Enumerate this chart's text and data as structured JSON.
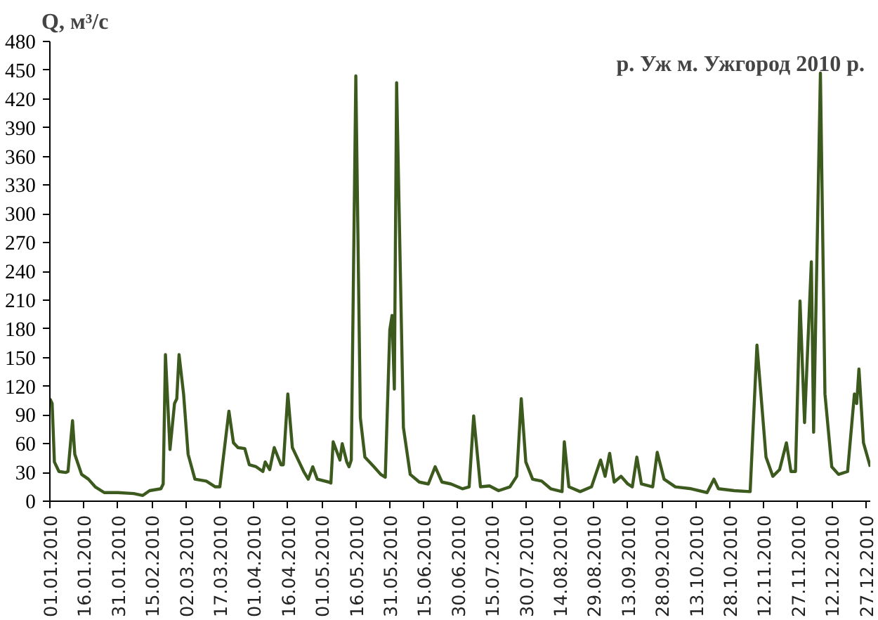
{
  "chart_data": {
    "type": "line",
    "title": "р. Уж м. Ужгород 2010 р.",
    "ylabel": "Q, м³/с",
    "x": [
      "2010-01-01",
      "2010-01-02",
      "2010-01-03",
      "2010-01-05",
      "2010-01-08",
      "2010-01-09",
      "2010-01-11",
      "2010-01-12",
      "2010-01-15",
      "2010-01-18",
      "2010-01-21",
      "2010-01-25",
      "2010-01-31",
      "2010-02-07",
      "2010-02-11",
      "2010-02-14",
      "2010-02-19",
      "2010-02-20",
      "2010-02-21",
      "2010-02-23",
      "2010-02-25",
      "2010-02-26",
      "2010-02-27",
      "2010-03-01",
      "2010-03-03",
      "2010-03-06",
      "2010-03-11",
      "2010-03-15",
      "2010-03-17",
      "2010-03-21",
      "2010-03-23",
      "2010-03-25",
      "2010-03-28",
      "2010-03-30",
      "2010-04-02",
      "2010-04-05",
      "2010-04-06",
      "2010-04-08",
      "2010-04-10",
      "2010-04-13",
      "2010-04-14",
      "2010-04-16",
      "2010-04-18",
      "2010-04-20",
      "2010-04-23",
      "2010-04-25",
      "2010-04-27",
      "2010-04-29",
      "2010-05-04",
      "2010-05-05",
      "2010-05-06",
      "2010-05-09",
      "2010-05-10",
      "2010-05-12",
      "2010-05-13",
      "2010-05-14",
      "2010-05-16",
      "2010-05-18",
      "2010-05-20",
      "2010-05-24",
      "2010-05-27",
      "2010-05-29",
      "2010-05-31",
      "2010-06-01",
      "2010-06-02",
      "2010-06-03",
      "2010-06-06",
      "2010-06-09",
      "2010-06-13",
      "2010-06-17",
      "2010-06-20",
      "2010-06-23",
      "2010-06-27",
      "2010-07-02",
      "2010-07-05",
      "2010-07-07",
      "2010-07-10",
      "2010-07-14",
      "2010-07-18",
      "2010-07-23",
      "2010-07-26",
      "2010-07-28",
      "2010-07-30",
      "2010-08-02",
      "2010-08-06",
      "2010-08-10",
      "2010-08-15",
      "2010-08-16",
      "2010-08-18",
      "2010-08-23",
      "2010-08-28",
      "2010-09-01",
      "2010-09-03",
      "2010-09-05",
      "2010-09-07",
      "2010-09-10",
      "2010-09-13",
      "2010-09-15",
      "2010-09-17",
      "2010-09-19",
      "2010-09-24",
      "2010-09-26",
      "2010-09-29",
      "2010-10-04",
      "2010-10-11",
      "2010-10-18",
      "2010-10-21",
      "2010-10-23",
      "2010-10-30",
      "2010-11-06",
      "2010-11-09",
      "2010-11-13",
      "2010-11-16",
      "2010-11-19",
      "2010-11-22",
      "2010-11-24",
      "2010-11-26",
      "2010-11-28",
      "2010-11-30",
      "2010-12-03",
      "2010-12-04",
      "2010-12-07",
      "2010-12-09",
      "2010-12-12",
      "2010-12-15",
      "2010-12-19",
      "2010-12-22",
      "2010-12-23",
      "2010-12-24",
      "2010-12-26",
      "2010-12-29"
    ],
    "series": [
      {
        "color": "#3d5a1e",
        "values": [
          107,
          102,
          41,
          31,
          30,
          31,
          84,
          49,
          28,
          23,
          15,
          9,
          9,
          8,
          6,
          11,
          13,
          18,
          153,
          54,
          102,
          107,
          153,
          112,
          49,
          23,
          21,
          15,
          15,
          94,
          61,
          56,
          55,
          38,
          36,
          31,
          41,
          33,
          56,
          38,
          38,
          112,
          56,
          46,
          31,
          23,
          36,
          23,
          20,
          19,
          62,
          43,
          60,
          41,
          36,
          43,
          444,
          87,
          46,
          36,
          28,
          25,
          179,
          194,
          117,
          437,
          77,
          28,
          20,
          18,
          36,
          20,
          18,
          13,
          15,
          89,
          15,
          16,
          11,
          15,
          26,
          107,
          41,
          23,
          21,
          13,
          10,
          62,
          15,
          10,
          15,
          43,
          26,
          50,
          20,
          26,
          18,
          15,
          46,
          18,
          15,
          51,
          23,
          15,
          13,
          9,
          23,
          13,
          11,
          10,
          163,
          46,
          26,
          33,
          61,
          31,
          31,
          209,
          82,
          250,
          72,
          447,
          112,
          36,
          28,
          31,
          112,
          102,
          138,
          61,
          36
        ]
      }
    ],
    "xlim": [
      "2010-01-01",
      "2010-12-29"
    ],
    "xticks": [
      {
        "value": "2010-01-01",
        "label": "01.01.2010"
      },
      {
        "value": "2010-01-16",
        "label": "16.01.2010"
      },
      {
        "value": "2010-01-31",
        "label": "31.01.2010"
      },
      {
        "value": "2010-02-15",
        "label": "15.02.2010"
      },
      {
        "value": "2010-03-02",
        "label": "02.03.2010"
      },
      {
        "value": "2010-03-17",
        "label": "17.03.2010"
      },
      {
        "value": "2010-04-01",
        "label": "01.04.2010"
      },
      {
        "value": "2010-04-16",
        "label": "16.04.2010"
      },
      {
        "value": "2010-05-01",
        "label": "01.05.2010"
      },
      {
        "value": "2010-05-16",
        "label": "16.05.2010"
      },
      {
        "value": "2010-05-31",
        "label": "31.05.2010"
      },
      {
        "value": "2010-06-15",
        "label": "15.06.2010"
      },
      {
        "value": "2010-06-30",
        "label": "30.06.2010"
      },
      {
        "value": "2010-07-15",
        "label": "15.07.2010"
      },
      {
        "value": "2010-07-30",
        "label": "30.07.2010"
      },
      {
        "value": "2010-08-14",
        "label": "14.08.2010"
      },
      {
        "value": "2010-08-29",
        "label": "29.08.2010"
      },
      {
        "value": "2010-09-13",
        "label": "13.09.2010"
      },
      {
        "value": "2010-09-28",
        "label": "28.09.2010"
      },
      {
        "value": "2010-10-13",
        "label": "13.10.2010"
      },
      {
        "value": "2010-10-28",
        "label": "28.10.2010"
      },
      {
        "value": "2010-11-12",
        "label": "12.11.2010"
      },
      {
        "value": "2010-11-27",
        "label": "27.11.2010"
      },
      {
        "value": "2010-12-12",
        "label": "12.12.2010"
      },
      {
        "value": "2010-12-27",
        "label": "27.12.2010"
      }
    ],
    "ylim": [
      0,
      480
    ],
    "yticks": [
      0,
      30,
      60,
      90,
      120,
      150,
      180,
      210,
      240,
      270,
      300,
      330,
      360,
      390,
      420,
      450,
      480
    ],
    "grid": false
  }
}
